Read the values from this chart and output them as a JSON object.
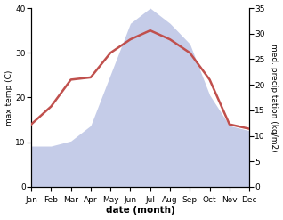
{
  "months": [
    "Jan",
    "Feb",
    "Mar",
    "Apr",
    "May",
    "Jun",
    "Jul",
    "Aug",
    "Sep",
    "Oct",
    "Nov",
    "Dec"
  ],
  "temperature": [
    14,
    18,
    24,
    24.5,
    30,
    33,
    35,
    33,
    30,
    24,
    14,
    13
  ],
  "precipitation": [
    8,
    8,
    9,
    12,
    22,
    32,
    35,
    32,
    28,
    18,
    12,
    11
  ],
  "temp_color": "#c0504d",
  "precip_color_fill": "#c5cce8",
  "left_ylim": [
    0,
    40
  ],
  "right_ylim": [
    0,
    35
  ],
  "left_yticks": [
    0,
    10,
    20,
    30,
    40
  ],
  "right_yticks": [
    0,
    5,
    10,
    15,
    20,
    25,
    30,
    35
  ],
  "xlabel": "date (month)",
  "ylabel_left": "max temp (C)",
  "ylabel_right": "med. precipitation (kg/m2)",
  "temp_linewidth": 1.8,
  "bg_color": "#ffffff",
  "tick_labelsize": 6.5
}
